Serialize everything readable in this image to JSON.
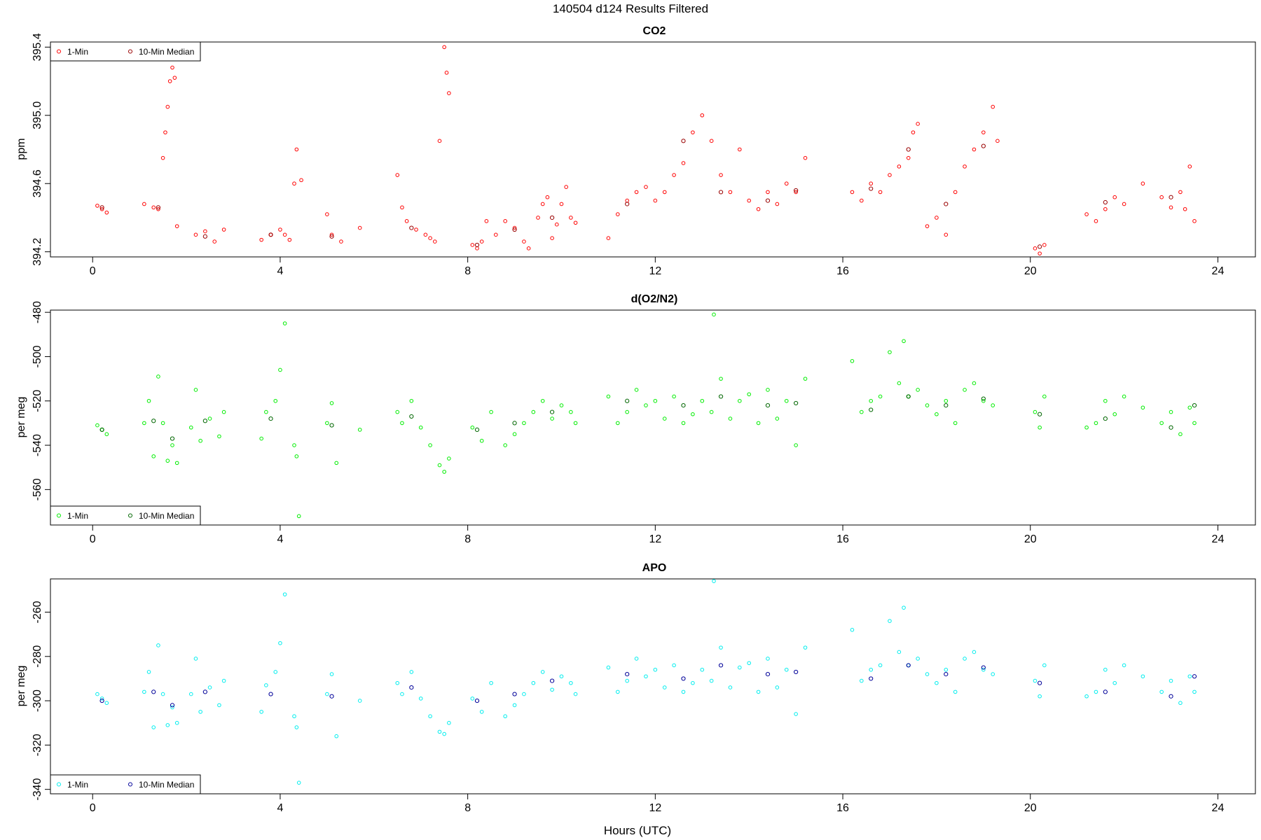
{
  "figure": {
    "title": "140504   d124   Results Filtered",
    "xlabel": "Hours (UTC)"
  },
  "chart_data": [
    {
      "type": "scatter",
      "title": "CO2",
      "ylabel": "ppm",
      "xlim": [
        -0.9,
        24.8
      ],
      "ylim": [
        394.17,
        395.43
      ],
      "xticks": [
        0,
        4,
        8,
        12,
        16,
        20,
        24
      ],
      "yticks": [
        394.2,
        394.6,
        395.0,
        395.4
      ],
      "ytick_labels": [
        "394.2",
        "394.6",
        "395.0",
        "395.4"
      ],
      "legend": {
        "position": "top-left",
        "entries": [
          "1-Min",
          "10-Min Median"
        ]
      },
      "colors": {
        "one_min": "#ff0000",
        "median": "#990000"
      },
      "series": [
        {
          "name": "1-Min",
          "x": [
            0.1,
            0.2,
            0.3,
            1.1,
            1.3,
            1.4,
            1.5,
            1.55,
            1.6,
            1.65,
            1.7,
            1.75,
            1.8,
            2.2,
            2.4,
            2.6,
            2.8,
            3.6,
            3.8,
            4.0,
            4.1,
            4.2,
            4.3,
            4.35,
            4.45,
            5.0,
            5.1,
            5.3,
            5.7,
            6.5,
            6.6,
            6.7,
            6.9,
            7.1,
            7.2,
            7.3,
            7.4,
            7.5,
            7.55,
            7.6,
            8.1,
            8.2,
            8.3,
            8.4,
            8.6,
            8.8,
            9.0,
            9.2,
            9.3,
            9.5,
            9.6,
            9.7,
            9.8,
            9.9,
            10.0,
            10.1,
            10.2,
            10.3,
            11.0,
            11.2,
            11.4,
            11.6,
            11.8,
            12.0,
            12.2,
            12.4,
            12.6,
            12.8,
            13.0,
            13.2,
            13.4,
            13.6,
            13.8,
            14.0,
            14.2,
            14.4,
            14.6,
            14.8,
            15.0,
            15.2,
            16.2,
            16.4,
            16.6,
            16.8,
            17.0,
            17.2,
            17.4,
            17.5,
            17.6,
            17.8,
            18.0,
            18.2,
            18.4,
            18.6,
            18.8,
            19.0,
            19.2,
            19.3,
            20.1,
            20.2,
            20.3,
            21.2,
            21.4,
            21.6,
            21.8,
            22.0,
            22.4,
            22.8,
            23.0,
            23.2,
            23.3,
            23.4,
            23.5
          ],
          "y": [
            394.47,
            394.45,
            394.43,
            394.48,
            394.46,
            394.45,
            394.75,
            394.9,
            395.05,
            395.2,
            395.28,
            395.22,
            394.35,
            394.3,
            394.32,
            394.26,
            394.33,
            394.27,
            394.3,
            394.33,
            394.3,
            394.27,
            394.6,
            394.8,
            394.62,
            394.42,
            394.3,
            394.26,
            394.34,
            394.65,
            394.46,
            394.38,
            394.33,
            394.3,
            394.28,
            394.26,
            394.85,
            395.4,
            395.25,
            395.13,
            394.24,
            394.22,
            394.26,
            394.38,
            394.3,
            394.38,
            394.34,
            394.26,
            394.22,
            394.4,
            394.48,
            394.52,
            394.28,
            394.36,
            394.48,
            394.58,
            394.4,
            394.37,
            394.28,
            394.42,
            394.5,
            394.55,
            394.58,
            394.5,
            394.55,
            394.65,
            394.72,
            394.9,
            395.0,
            394.85,
            394.65,
            394.55,
            394.8,
            394.5,
            394.45,
            394.55,
            394.48,
            394.6,
            394.55,
            394.75,
            394.55,
            394.5,
            394.6,
            394.55,
            394.65,
            394.7,
            394.75,
            394.9,
            394.95,
            394.35,
            394.4,
            394.3,
            394.55,
            394.7,
            394.8,
            394.9,
            395.05,
            394.85,
            394.22,
            394.19,
            394.24,
            394.42,
            394.38,
            394.45,
            394.52,
            394.48,
            394.6,
            394.52,
            394.46,
            394.55,
            394.45,
            394.7,
            394.38
          ]
        },
        {
          "name": "10-Min Median",
          "x": [
            0.2,
            1.4,
            2.4,
            3.8,
            5.1,
            6.8,
            8.2,
            9.0,
            9.8,
            11.4,
            12.6,
            13.4,
            14.4,
            15.0,
            16.6,
            17.4,
            18.2,
            19.0,
            20.2,
            21.6,
            23.0
          ],
          "y": [
            394.46,
            394.46,
            394.29,
            394.3,
            394.29,
            394.34,
            394.24,
            394.33,
            394.4,
            394.48,
            394.85,
            394.55,
            394.5,
            394.56,
            394.57,
            394.8,
            394.48,
            394.82,
            394.23,
            394.49,
            394.52
          ]
        }
      ]
    },
    {
      "type": "scatter",
      "title": "d(O2/N2)",
      "ylabel": "per meg",
      "xlim": [
        -0.9,
        24.8
      ],
      "ylim": [
        -576,
        -479
      ],
      "xticks": [
        0,
        4,
        8,
        12,
        16,
        20,
        24
      ],
      "yticks": [
        -560,
        -540,
        -520,
        -500,
        -480
      ],
      "ytick_labels": [
        "-560",
        "-540",
        "-520",
        "-500",
        "-480"
      ],
      "legend": {
        "position": "bottom-left",
        "entries": [
          "1-Min",
          "10-Min Median"
        ]
      },
      "colors": {
        "one_min": "#00ee00",
        "median": "#006600"
      },
      "series": [
        {
          "name": "1-Min",
          "x": [
            0.1,
            0.2,
            0.3,
            1.1,
            1.2,
            1.3,
            1.4,
            1.5,
            1.6,
            1.7,
            1.8,
            2.1,
            2.2,
            2.3,
            2.5,
            2.7,
            2.8,
            3.6,
            3.7,
            3.9,
            4.0,
            4.1,
            4.3,
            4.35,
            4.4,
            5.0,
            5.1,
            5.2,
            5.7,
            6.5,
            6.6,
            6.8,
            7.0,
            7.2,
            7.4,
            7.5,
            7.6,
            8.1,
            8.3,
            8.5,
            8.8,
            9.0,
            9.2,
            9.4,
            9.6,
            9.8,
            10.0,
            10.2,
            10.3,
            11.0,
            11.2,
            11.4,
            11.6,
            11.8,
            12.0,
            12.2,
            12.4,
            12.6,
            12.8,
            13.0,
            13.2,
            13.25,
            13.4,
            13.6,
            13.8,
            14.0,
            14.2,
            14.4,
            14.6,
            14.8,
            15.0,
            15.2,
            16.2,
            16.4,
            16.6,
            16.8,
            17.0,
            17.2,
            17.3,
            17.4,
            17.6,
            17.8,
            18.0,
            18.2,
            18.4,
            18.6,
            18.8,
            19.0,
            19.2,
            20.1,
            20.2,
            20.3,
            21.2,
            21.4,
            21.6,
            21.8,
            22.0,
            22.4,
            22.8,
            23.0,
            23.2,
            23.4,
            23.5
          ],
          "y": [
            -531,
            -533,
            -535,
            -530,
            -520,
            -545,
            -509,
            -530,
            -547,
            -540,
            -548,
            -532,
            -515,
            -538,
            -528,
            -536,
            -525,
            -537,
            -525,
            -520,
            -506,
            -485,
            -540,
            -545,
            -572,
            -530,
            -521,
            -548,
            -533,
            -525,
            -530,
            -520,
            -532,
            -540,
            -549,
            -552,
            -546,
            -532,
            -538,
            -525,
            -540,
            -535,
            -530,
            -525,
            -520,
            -528,
            -522,
            -525,
            -530,
            -518,
            -530,
            -525,
            -515,
            -522,
            -520,
            -528,
            -518,
            -530,
            -526,
            -520,
            -525,
            -481,
            -510,
            -528,
            -520,
            -517,
            -530,
            -515,
            -528,
            -520,
            -540,
            -510,
            -502,
            -525,
            -520,
            -518,
            -498,
            -512,
            -493,
            -518,
            -515,
            -522,
            -526,
            -520,
            -530,
            -515,
            -512,
            -520,
            -522,
            -525,
            -532,
            -518,
            -532,
            -530,
            -520,
            -526,
            -518,
            -523,
            -530,
            -525,
            -535,
            -523,
            -530
          ]
        },
        {
          "name": "10-Min Median",
          "x": [
            0.2,
            1.3,
            1.7,
            2.4,
            3.8,
            5.1,
            6.8,
            8.2,
            9.0,
            9.8,
            11.4,
            12.6,
            13.4,
            14.4,
            15.0,
            16.6,
            17.4,
            18.2,
            19.0,
            20.2,
            21.6,
            23.0,
            23.5
          ],
          "y": [
            -533,
            -529,
            -537,
            -529,
            -528,
            -531,
            -527,
            -533,
            -530,
            -525,
            -520,
            -522,
            -518,
            -522,
            -521,
            -524,
            -518,
            -522,
            -519,
            -526,
            -528,
            -532,
            -522
          ]
        }
      ]
    },
    {
      "type": "scatter",
      "title": "APO",
      "ylabel": "per meg",
      "xlim": [
        -0.9,
        24.8
      ],
      "ylim": [
        -342,
        -245
      ],
      "xticks": [
        0,
        4,
        8,
        12,
        16,
        20,
        24
      ],
      "yticks": [
        -340,
        -320,
        -300,
        -280,
        -260
      ],
      "ytick_labels": [
        "-340",
        "-320",
        "-300",
        "-280",
        "-260"
      ],
      "legend": {
        "position": "bottom-left",
        "entries": [
          "1-Min",
          "10-Min Median"
        ]
      },
      "colors": {
        "one_min": "#00eeee",
        "median": "#000099"
      },
      "series": [
        {
          "name": "1-Min",
          "x": [
            0.1,
            0.2,
            0.3,
            1.1,
            1.2,
            1.3,
            1.4,
            1.5,
            1.6,
            1.7,
            1.8,
            2.1,
            2.2,
            2.3,
            2.5,
            2.7,
            2.8,
            3.6,
            3.7,
            3.9,
            4.0,
            4.1,
            4.3,
            4.35,
            4.4,
            5.0,
            5.1,
            5.2,
            5.7,
            6.5,
            6.6,
            6.8,
            7.0,
            7.2,
            7.4,
            7.5,
            7.6,
            8.1,
            8.3,
            8.5,
            8.8,
            9.0,
            9.2,
            9.4,
            9.6,
            9.8,
            10.0,
            10.2,
            10.3,
            11.0,
            11.2,
            11.4,
            11.6,
            11.8,
            12.0,
            12.2,
            12.4,
            12.6,
            12.8,
            13.0,
            13.2,
            13.25,
            13.4,
            13.6,
            13.8,
            14.0,
            14.2,
            14.4,
            14.6,
            14.8,
            15.0,
            15.2,
            16.2,
            16.4,
            16.6,
            16.8,
            17.0,
            17.2,
            17.3,
            17.4,
            17.6,
            17.8,
            18.0,
            18.2,
            18.4,
            18.6,
            18.8,
            19.0,
            19.2,
            20.1,
            20.2,
            20.3,
            21.2,
            21.4,
            21.6,
            21.8,
            22.0,
            22.4,
            22.8,
            23.0,
            23.2,
            23.4,
            23.5
          ],
          "y": [
            -297,
            -299,
            -301,
            -296,
            -287,
            -312,
            -275,
            -297,
            -311,
            -303,
            -310,
            -297,
            -281,
            -305,
            -294,
            -302,
            -291,
            -305,
            -293,
            -287,
            -274,
            -252,
            -307,
            -312,
            -337,
            -297,
            -288,
            -316,
            -300,
            -292,
            -297,
            -287,
            -299,
            -307,
            -314,
            -315,
            -310,
            -299,
            -305,
            -292,
            -307,
            -302,
            -297,
            -292,
            -287,
            -295,
            -289,
            -292,
            -297,
            -285,
            -296,
            -291,
            -281,
            -289,
            -286,
            -294,
            -284,
            -296,
            -292,
            -286,
            -291,
            -246,
            -276,
            -294,
            -285,
            -283,
            -296,
            -281,
            -294,
            -286,
            -306,
            -276,
            -268,
            -291,
            -286,
            -284,
            -264,
            -278,
            -258,
            -284,
            -281,
            -288,
            -292,
            -286,
            -296,
            -281,
            -278,
            -286,
            -288,
            -291,
            -298,
            -284,
            -298,
            -296,
            -286,
            -292,
            -284,
            -289,
            -296,
            -291,
            -301,
            -289,
            -296
          ]
        },
        {
          "name": "10-Min Median",
          "x": [
            0.2,
            1.3,
            1.7,
            2.4,
            3.8,
            5.1,
            6.8,
            8.2,
            9.0,
            9.8,
            11.4,
            12.6,
            13.4,
            14.4,
            15.0,
            16.6,
            17.4,
            18.2,
            19.0,
            20.2,
            21.6,
            23.0,
            23.5
          ],
          "y": [
            -300,
            -296,
            -302,
            -296,
            -297,
            -298,
            -294,
            -300,
            -297,
            -291,
            -288,
            -290,
            -284,
            -288,
            -287,
            -290,
            -284,
            -288,
            -285,
            -292,
            -296,
            -298,
            -289
          ]
        }
      ]
    }
  ]
}
